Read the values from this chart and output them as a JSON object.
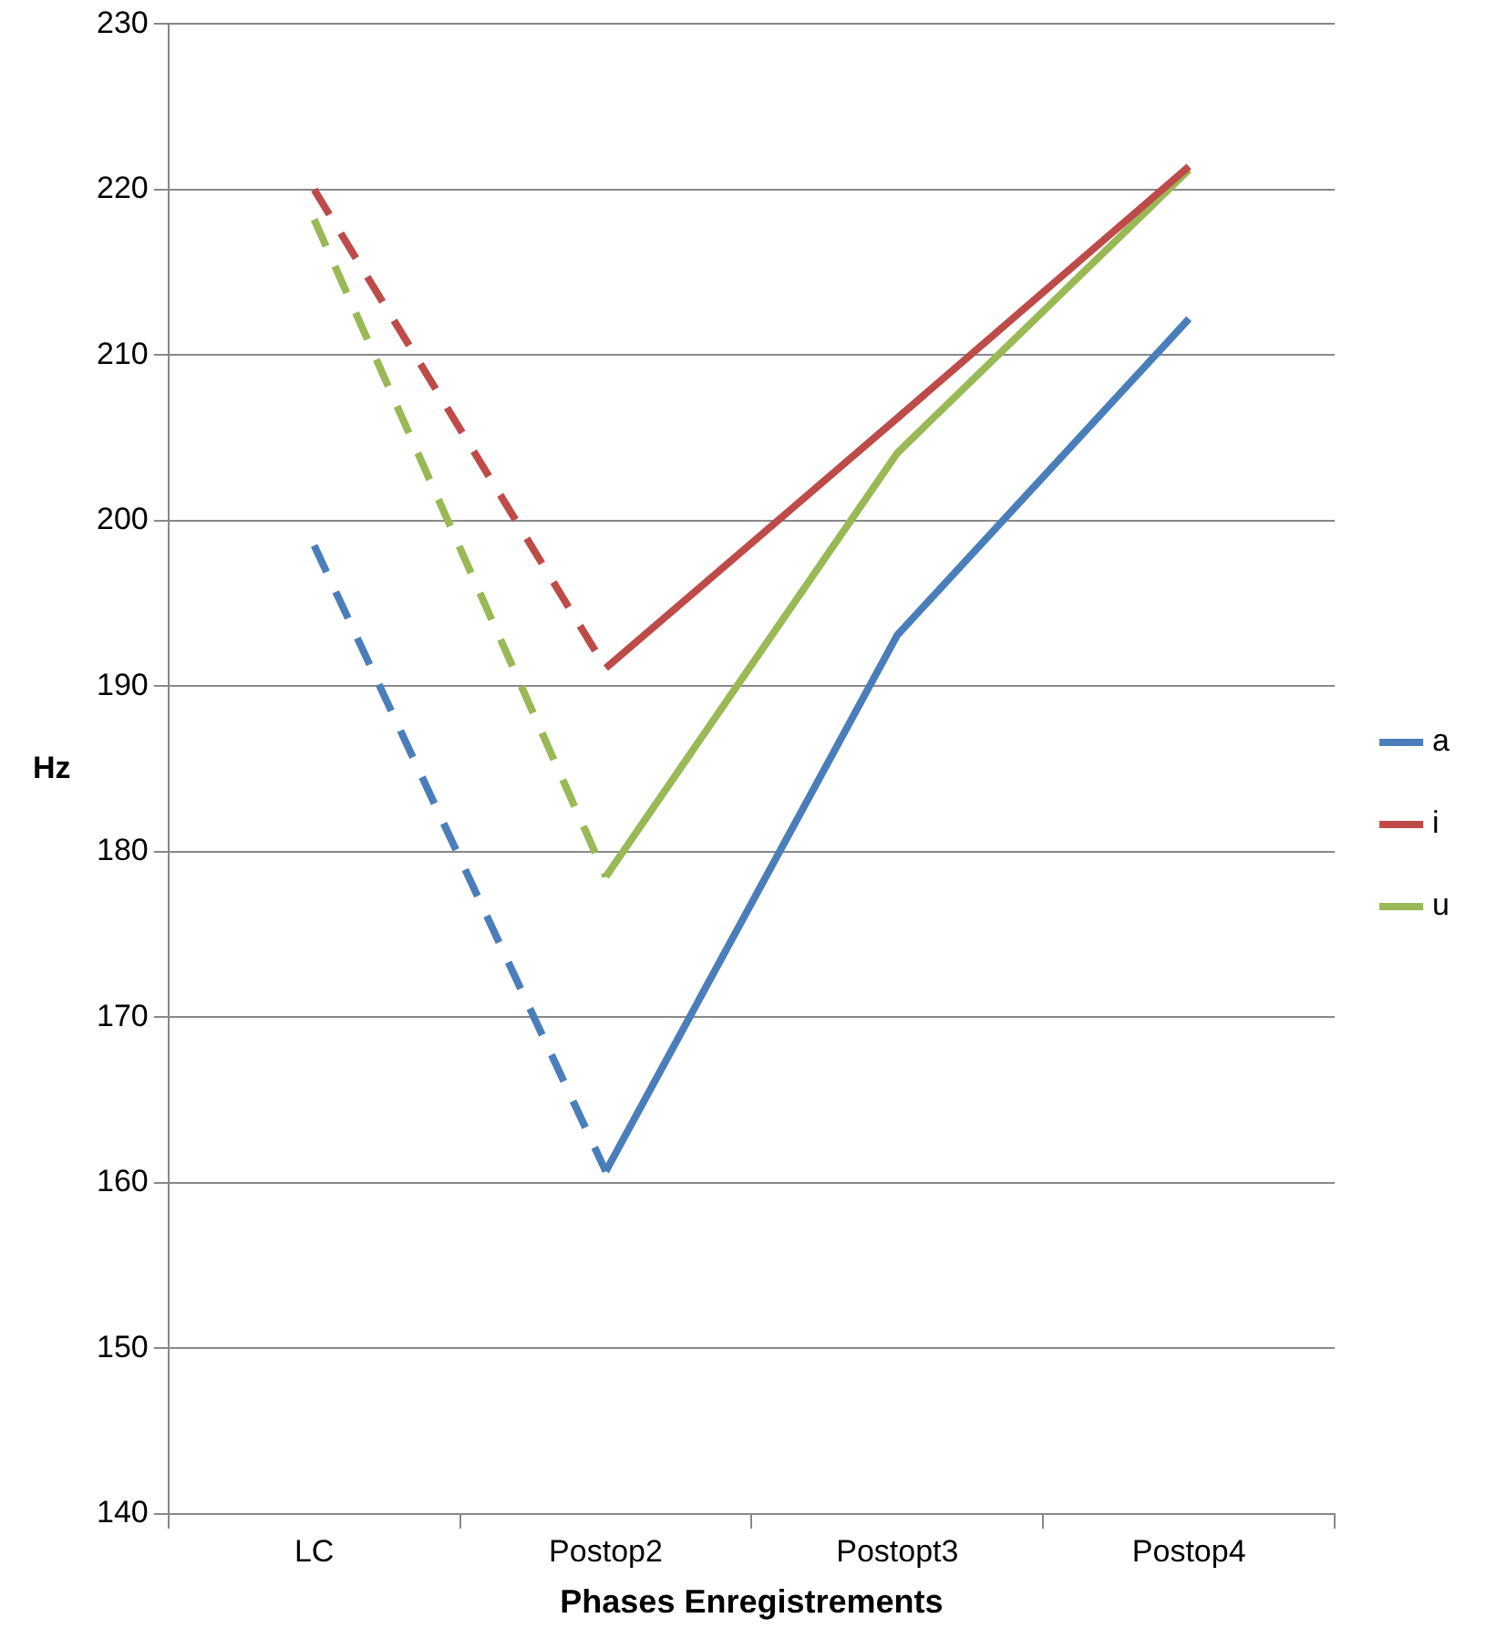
{
  "chart_data": {
    "type": "line",
    "xlabel": "Phases Enregistrements",
    "ylabel": "Hz",
    "categories": [
      "LC",
      "Postop2",
      "Postopt3",
      "Postop4"
    ],
    "series": [
      {
        "name": "a",
        "color": "#4a7ebb",
        "values": [
          null,
          160.7,
          193.1,
          212.2
        ],
        "line_style": "solid"
      },
      {
        "name": "i",
        "color": "#be4b48",
        "values": [
          null,
          191.1,
          206.2,
          221.4
        ],
        "line_style": "solid"
      },
      {
        "name": "u",
        "color": "#98b954",
        "values": [
          null,
          178.5,
          204.1,
          221.2
        ],
        "line_style": "solid"
      },
      {
        "color": "#4a7ebb",
        "values": [
          198.5,
          160.7,
          null,
          null
        ],
        "line_style": "dashed"
      },
      {
        "color": "#be4b48",
        "values": [
          220,
          191.1,
          null,
          null
        ],
        "line_style": "dashed"
      },
      {
        "color": "#98b954",
        "values": [
          218.2,
          178.5,
          null,
          null
        ],
        "line_style": "dashed"
      }
    ],
    "ylim": [
      140,
      230
    ],
    "yticks": [
      140,
      150,
      160,
      170,
      180,
      190,
      200,
      210,
      220,
      230
    ],
    "grid": "y",
    "legend": "right",
    "marker": "none"
  }
}
